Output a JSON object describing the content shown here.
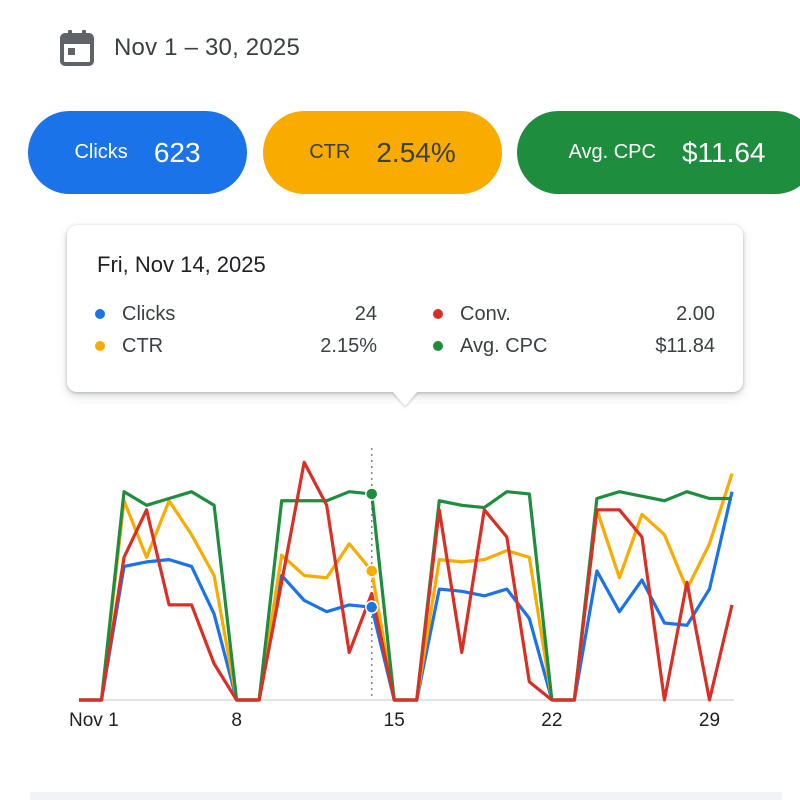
{
  "date_range": {
    "label": "Nov 1 – 30, 2025",
    "icon": "calendar-icon"
  },
  "chips": {
    "clicks": {
      "label": "Clicks",
      "value": "623",
      "color": "#1a73e8"
    },
    "ctr": {
      "label": "CTR",
      "value": "2.54%",
      "color": "#f9ab00"
    },
    "cpc": {
      "label": "Avg. CPC",
      "value": "$11.64",
      "color": "#1e8e3e"
    }
  },
  "tooltip": {
    "title": "Fri, Nov 14, 2025",
    "clicks": {
      "label": "Clicks",
      "value": "24",
      "color": "#1a73e8"
    },
    "ctr": {
      "label": "CTR",
      "value": "2.15%",
      "color": "#f9ab00"
    },
    "conv": {
      "label": "Conv.",
      "value": "2.00",
      "color": "#d93025"
    },
    "cpc": {
      "label": "Avg. CPC",
      "value": "$11.84",
      "color": "#1e8e3e"
    }
  },
  "chart_data": {
    "type": "line",
    "x": [
      1,
      2,
      3,
      4,
      5,
      6,
      7,
      8,
      9,
      10,
      11,
      12,
      13,
      14,
      15,
      16,
      17,
      18,
      19,
      20,
      21,
      22,
      23,
      24,
      25,
      26,
      27,
      28,
      29,
      30
    ],
    "x_tick_labels": [
      "Nov 1",
      "8",
      "15",
      "22",
      "29"
    ],
    "x_tick_values": [
      1,
      8,
      15,
      22,
      29
    ],
    "highlight_x": 14,
    "grid": false,
    "series": [
      {
        "name": "Clicks",
        "color": "#1a73e8",
        "values": [
          0,
          0,
          0.59,
          0.61,
          0.62,
          0.59,
          0.38,
          0,
          0,
          0.55,
          0.44,
          0.39,
          0.42,
          0.41,
          0,
          0,
          0.49,
          0.48,
          0.46,
          0.49,
          0.36,
          0,
          0,
          0.57,
          0.39,
          0.53,
          0.34,
          0.33,
          0.49,
          0.92
        ]
      },
      {
        "name": "CTR",
        "color": "#f9ab00",
        "values": [
          0,
          0,
          0.88,
          0.63,
          0.88,
          0.73,
          0.55,
          0,
          0,
          0.64,
          0.55,
          0.54,
          0.69,
          0.57,
          0,
          0,
          0.62,
          0.61,
          0.62,
          0.66,
          0.63,
          0,
          0,
          0.84,
          0.54,
          0.82,
          0.73,
          0.49,
          0.69,
          1.0
        ]
      },
      {
        "name": "Conv.",
        "color": "#d93025",
        "values": [
          0,
          0,
          0.63,
          0.84,
          0.42,
          0.42,
          0.16,
          0,
          0,
          0.52,
          1.05,
          0.86,
          0.21,
          0.47,
          0,
          0,
          0.84,
          0.21,
          0.84,
          0.72,
          0.08,
          0,
          0,
          0.84,
          0.84,
          0.72,
          0,
          0.52,
          0,
          0.42
        ]
      },
      {
        "name": "Avg. CPC",
        "color": "#1e8e3e",
        "values": [
          0,
          0,
          0.92,
          0.86,
          0.89,
          0.92,
          0.86,
          0,
          0,
          0.88,
          0.88,
          0.88,
          0.92,
          0.91,
          0,
          0,
          0.88,
          0.86,
          0.85,
          0.92,
          0.91,
          0,
          0,
          0.89,
          0.92,
          0.9,
          0.88,
          0.92,
          0.89,
          0.89
        ]
      }
    ]
  }
}
